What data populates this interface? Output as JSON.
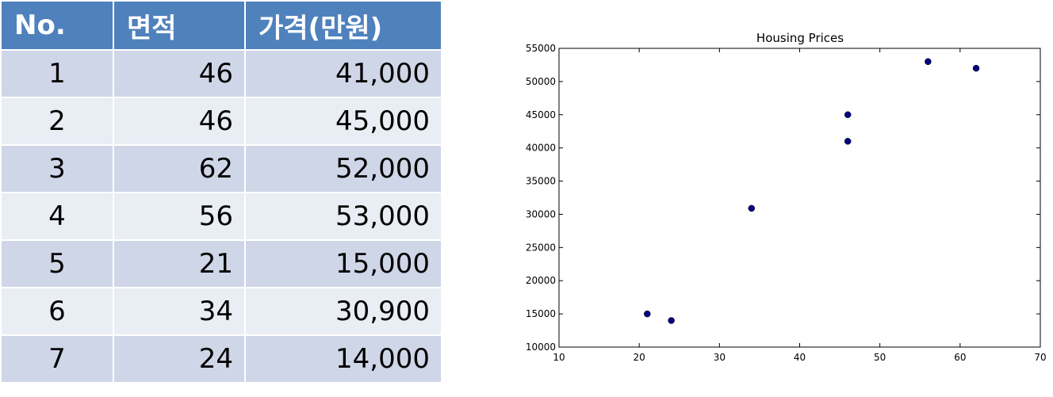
{
  "table": {
    "headers": [
      "No.",
      "면적",
      "가격(만원)"
    ],
    "rows": [
      {
        "no": "1",
        "area": "46",
        "price": "41,000"
      },
      {
        "no": "2",
        "area": "46",
        "price": "45,000"
      },
      {
        "no": "3",
        "area": "62",
        "price": "52,000"
      },
      {
        "no": "4",
        "area": "56",
        "price": "53,000"
      },
      {
        "no": "5",
        "area": "21",
        "price": "15,000"
      },
      {
        "no": "6",
        "area": "34",
        "price": "30,900"
      },
      {
        "no": "7",
        "area": "24",
        "price": "14,000"
      }
    ],
    "colors": {
      "header": "#4f81bd",
      "row_odd": "#cfd6e7",
      "row_even": "#e9edf4"
    }
  },
  "chart_data": {
    "type": "scatter",
    "title": "Housing Prices",
    "xlabel": "",
    "ylabel": "",
    "xlim": [
      10,
      70
    ],
    "ylim": [
      10000,
      55000
    ],
    "xticks": [
      10,
      20,
      30,
      40,
      50,
      60,
      70
    ],
    "yticks": [
      10000,
      15000,
      20000,
      25000,
      30000,
      35000,
      40000,
      45000,
      50000,
      55000
    ],
    "grid": false,
    "marker_color": "#000080",
    "points": [
      {
        "x": 46,
        "y": 41000
      },
      {
        "x": 46,
        "y": 45000
      },
      {
        "x": 62,
        "y": 52000
      },
      {
        "x": 56,
        "y": 53000
      },
      {
        "x": 21,
        "y": 15000
      },
      {
        "x": 34,
        "y": 30900
      },
      {
        "x": 24,
        "y": 14000
      }
    ]
  }
}
